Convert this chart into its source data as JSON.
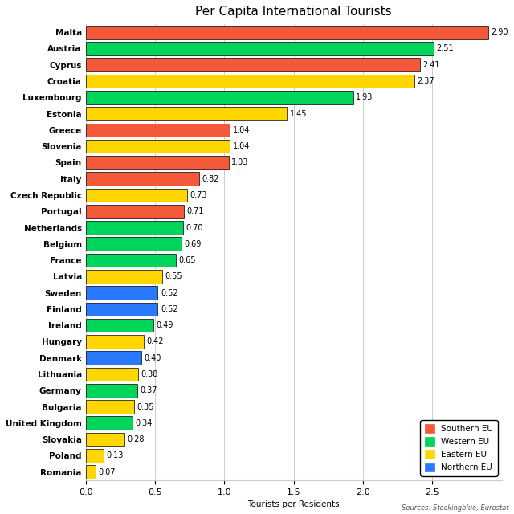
{
  "title": "Per Capita International Tourists",
  "xlabel": "Tourists per Residents",
  "source": "Sources: Stockingblue, Eurostat",
  "countries": [
    "Malta",
    "Austria",
    "Cyprus",
    "Croatia",
    "Luxembourg",
    "Estonia",
    "Greece",
    "Slovenia",
    "Spain",
    "Italy",
    "Czech Republic",
    "Portugal",
    "Netherlands",
    "Belgium",
    "France",
    "Latvia",
    "Sweden",
    "Finland",
    "Ireland",
    "Hungary",
    "Denmark",
    "Lithuania",
    "Germany",
    "Bulgaria",
    "United Kingdom",
    "Slovakia",
    "Poland",
    "Romania"
  ],
  "values": [
    2.9,
    2.51,
    2.41,
    2.37,
    1.93,
    1.45,
    1.04,
    1.04,
    1.03,
    0.82,
    0.73,
    0.71,
    0.7,
    0.69,
    0.65,
    0.55,
    0.52,
    0.52,
    0.49,
    0.42,
    0.4,
    0.38,
    0.37,
    0.35,
    0.34,
    0.28,
    0.13,
    0.07
  ],
  "regions": [
    "Southern EU",
    "Western EU",
    "Southern EU",
    "Eastern EU",
    "Western EU",
    "Eastern EU",
    "Southern EU",
    "Eastern EU",
    "Southern EU",
    "Southern EU",
    "Eastern EU",
    "Southern EU",
    "Western EU",
    "Western EU",
    "Western EU",
    "Eastern EU",
    "Northern EU",
    "Northern EU",
    "Western EU",
    "Eastern EU",
    "Northern EU",
    "Eastern EU",
    "Western EU",
    "Eastern EU",
    "Western EU",
    "Eastern EU",
    "Eastern EU",
    "Eastern EU"
  ],
  "region_colors": {
    "Southern EU": "#F4593A",
    "Western EU": "#00D45A",
    "Eastern EU": "#FFD600",
    "Northern EU": "#2979FF"
  },
  "legend_order": [
    "Southern EU",
    "Western EU",
    "Eastern EU",
    "Northern EU"
  ],
  "xlim": [
    0,
    3.0
  ],
  "xticks": [
    0.0,
    0.5,
    1.0,
    1.5,
    2.0,
    2.5
  ],
  "bar_height": 0.82,
  "background_color": "#ffffff",
  "grid_color": "#cccccc",
  "title_fontsize": 11,
  "label_fontsize": 7.5,
  "tick_fontsize": 8,
  "value_fontsize": 7
}
